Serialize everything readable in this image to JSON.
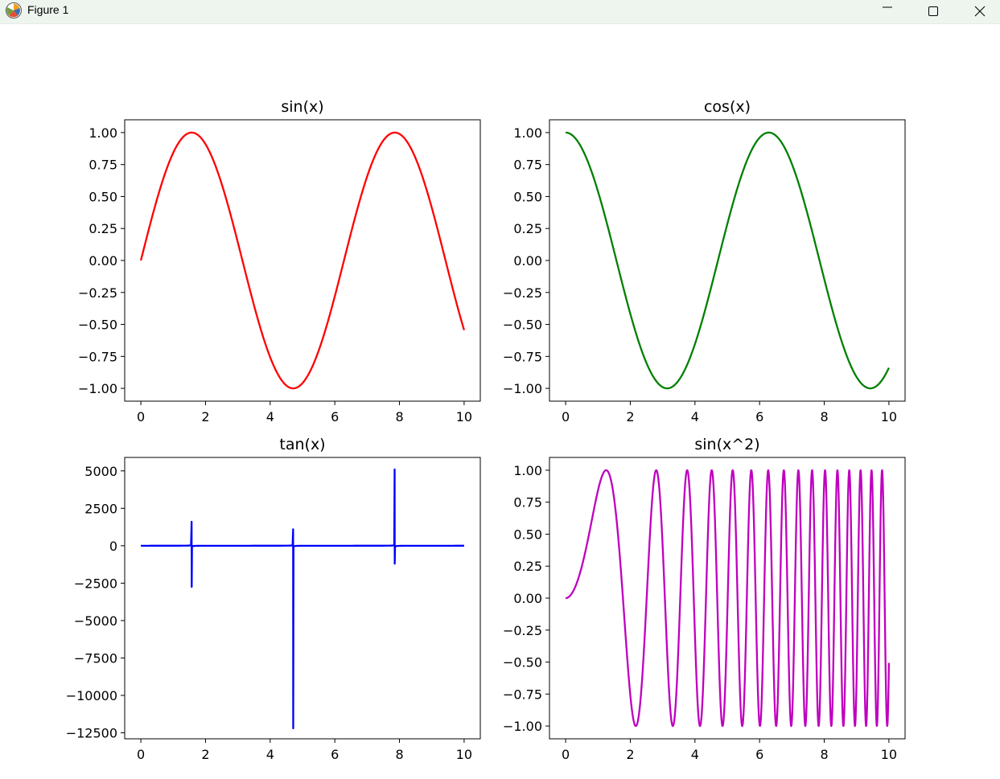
{
  "window": {
    "title": "Figure 1",
    "icons": {
      "app": "matplotlib-logo-icon",
      "minimize": "minimize-icon",
      "maximize": "maximize-icon",
      "close": "close-icon"
    }
  },
  "colors": {
    "sin": "#ff0000",
    "cos": "#008000",
    "tan": "#0000ff",
    "sin_sq": "#bf00bf"
  },
  "chart_data": [
    {
      "id": "sin",
      "type": "line",
      "title": "sin(x)",
      "function": "sin(x)",
      "x_range": [
        0,
        10
      ],
      "xlim": [
        -0.5,
        10.5
      ],
      "ylim": [
        -1.1,
        1.1
      ],
      "xticks": [
        0,
        2,
        4,
        6,
        8,
        10
      ],
      "xtick_labels": [
        "0",
        "2",
        "4",
        "6",
        "8",
        "10"
      ],
      "yticks": [
        1,
        0.75,
        0.5,
        0.25,
        0,
        -0.25,
        -0.5,
        -0.75,
        -1
      ],
      "ytick_labels": [
        "1.00",
        "0.75",
        "0.50",
        "0.25",
        "0.00",
        "−0.25",
        "−0.50",
        "−0.75",
        "−1.00"
      ],
      "grid": false,
      "color": "#ff0000"
    },
    {
      "id": "cos",
      "type": "line",
      "title": "cos(x)",
      "function": "cos(x)",
      "x_range": [
        0,
        10
      ],
      "xlim": [
        -0.5,
        10.5
      ],
      "ylim": [
        -1.1,
        1.1
      ],
      "xticks": [
        0,
        2,
        4,
        6,
        8,
        10
      ],
      "xtick_labels": [
        "0",
        "2",
        "4",
        "6",
        "8",
        "10"
      ],
      "yticks": [
        1,
        0.75,
        0.5,
        0.25,
        0,
        -0.25,
        -0.5,
        -0.75,
        -1
      ],
      "ytick_labels": [
        "1.00",
        "0.75",
        "0.50",
        "0.25",
        "0.00",
        "−0.25",
        "−0.50",
        "−0.75",
        "−1.00"
      ],
      "grid": false,
      "color": "#008000"
    },
    {
      "id": "tan",
      "type": "line",
      "title": "tan(x)",
      "function": "tan(x)",
      "x_range": [
        0,
        10
      ],
      "xlim": [
        -0.5,
        10.5
      ],
      "ylim": [
        -12900,
        5900
      ],
      "xticks": [
        0,
        2,
        4,
        6,
        8,
        10
      ],
      "xtick_labels": [
        "0",
        "2",
        "4",
        "6",
        "8",
        "10"
      ],
      "yticks": [
        5000,
        2500,
        0,
        -2500,
        -5000,
        -7500,
        -10000,
        -12500
      ],
      "ytick_labels": [
        "5000",
        "2500",
        "0",
        "−2500",
        "−5000",
        "−7500",
        "−10000",
        "−12500"
      ],
      "grid": false,
      "color": "#0000ff",
      "asymptote_spikes": [
        {
          "x": 1.57,
          "y_max": 1600,
          "y_min": -2750
        },
        {
          "x": 4.71,
          "y_max": 1100,
          "y_min": -12200
        },
        {
          "x": 7.85,
          "y_max": 5100,
          "y_min": -1200
        }
      ]
    },
    {
      "id": "sin_sq",
      "type": "line",
      "title": "sin(x^2)",
      "function": "sin(x^2)",
      "x_range": [
        0,
        10
      ],
      "xlim": [
        -0.5,
        10.5
      ],
      "ylim": [
        -1.1,
        1.1
      ],
      "xticks": [
        0,
        2,
        4,
        6,
        8,
        10
      ],
      "xtick_labels": [
        "0",
        "2",
        "4",
        "6",
        "8",
        "10"
      ],
      "yticks": [
        1,
        0.75,
        0.5,
        0.25,
        0,
        -0.25,
        -0.5,
        -0.75,
        -1
      ],
      "ytick_labels": [
        "1.00",
        "0.75",
        "0.50",
        "0.25",
        "0.00",
        "−0.25",
        "−0.50",
        "−0.75",
        "−1.00"
      ],
      "grid": false,
      "color": "#bf00bf"
    }
  ]
}
